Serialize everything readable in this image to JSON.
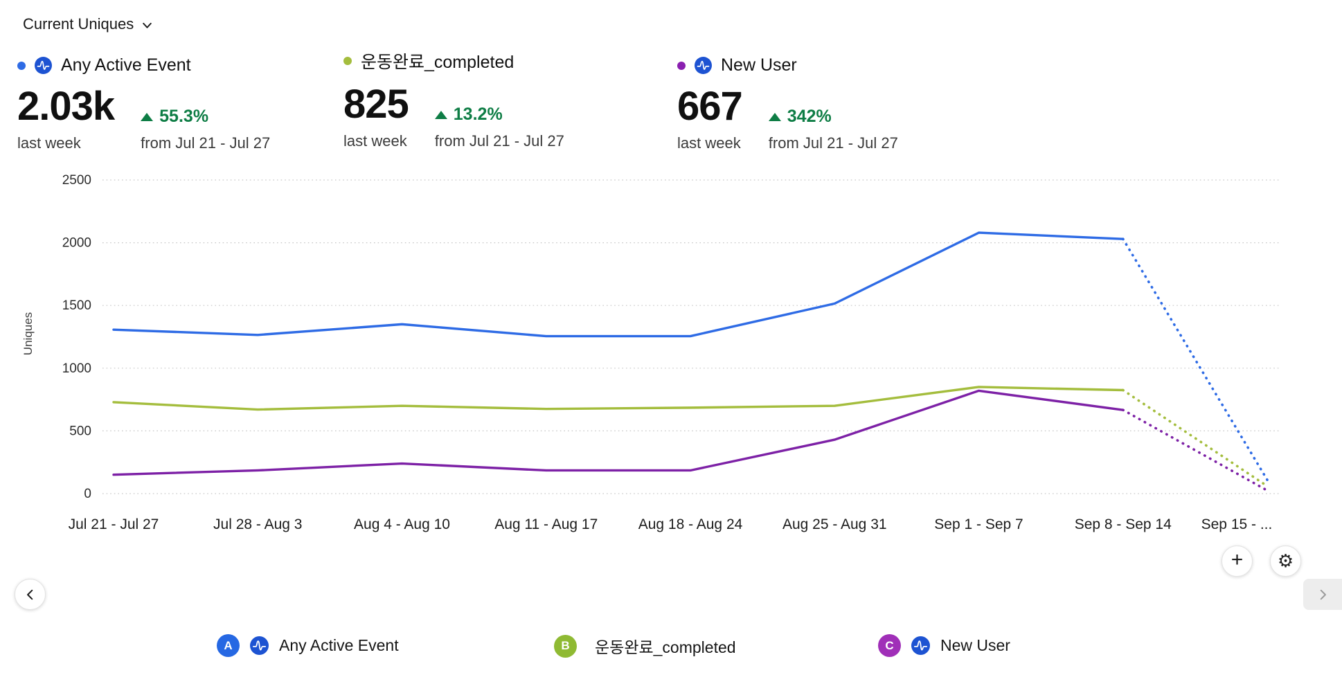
{
  "header": {
    "dropdown_label": "Current Uniques"
  },
  "colors": {
    "blue_line": "#2e6be5",
    "green_line": "#a4bd3d",
    "purple_line": "#7d21a6",
    "badge_a": "#2668e3",
    "badge_b": "#8fba33",
    "badge_c": "#a02fb8",
    "positive_change": "#0e7d45",
    "amplitude_icon": "#1d53d2",
    "grid": "#c6c6c6"
  },
  "icons": {
    "add": "+",
    "settings": "⚙"
  },
  "metrics": [
    {
      "label": "Any Active Event",
      "value": "2.03k",
      "period": "last week",
      "change": "55.3%",
      "change_direction": "up",
      "compare": "from Jul 21 - Jul 27",
      "dot_color": "#2e6be5",
      "has_amplitude_icon": true
    },
    {
      "label": "운동완료_completed",
      "value": "825",
      "period": "last week",
      "change": "13.2%",
      "change_direction": "up",
      "compare": "from Jul 21 - Jul 27",
      "dot_color": "#a4bd3d",
      "has_amplitude_icon": false
    },
    {
      "label": "New User",
      "value": "667",
      "period": "last week",
      "change": "342%",
      "change_direction": "up",
      "compare": "from Jul 21 - Jul 27",
      "dot_color": "#8a1fb0",
      "has_amplitude_icon": true
    }
  ],
  "chart_data": {
    "type": "line",
    "title": "Current Uniques",
    "xlabel": "",
    "ylabel": "Uniques",
    "ylim": [
      0,
      2500
    ],
    "yticks": [
      0,
      500,
      1000,
      1500,
      2000,
      2500
    ],
    "grid": "dotted-horizontal",
    "categories": [
      "Jul 21 - Jul 27",
      "Jul 28 - Aug 3",
      "Aug 4 - Aug 10",
      "Aug 11 - Aug 17",
      "Aug 18 - Aug 24",
      "Aug 25 - Aug 31",
      "Sep 1 - Sep 7",
      "Sep 8 - Sep 14",
      "Sep 15 - ..."
    ],
    "series": [
      {
        "name": "Any Active Event",
        "color": "#2e6be5",
        "values": [
          1307,
          1265,
          1350,
          1255,
          1255,
          1515,
          2080,
          2030,
          110
        ],
        "dashed_from_index": 7
      },
      {
        "name": "운동완료_completed",
        "color": "#a4bd3d",
        "values": [
          729,
          670,
          700,
          675,
          685,
          700,
          850,
          825,
          60
        ],
        "dashed_from_index": 7
      },
      {
        "name": "New User",
        "color": "#7d21a6",
        "values": [
          151,
          185,
          240,
          185,
          185,
          430,
          820,
          667,
          25
        ],
        "dashed_from_index": 7
      }
    ],
    "note_last_point_partial": true,
    "legend_position": "bottom"
  },
  "legend": [
    {
      "badge": "A",
      "badge_color": "#2668e3",
      "label": "Any Active Event",
      "has_amplitude_icon": true
    },
    {
      "badge": "B",
      "badge_color": "#8fba33",
      "label": "운동완료_completed",
      "has_amplitude_icon": false
    },
    {
      "badge": "C",
      "badge_color": "#a02fb8",
      "label": "New User",
      "has_amplitude_icon": true
    }
  ]
}
